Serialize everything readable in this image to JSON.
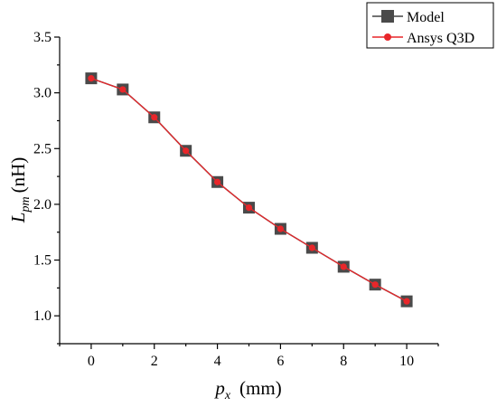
{
  "chart_data": {
    "type": "line",
    "x": [
      0,
      1,
      2,
      3,
      4,
      5,
      6,
      7,
      8,
      9,
      10
    ],
    "series": [
      {
        "name": "Model",
        "values": [
          3.13,
          3.03,
          2.78,
          2.48,
          2.2,
          1.97,
          1.78,
          1.61,
          1.44,
          1.28,
          1.13
        ],
        "color": "#4a4a4a",
        "marker": "square"
      },
      {
        "name": "Ansys Q3D",
        "values": [
          3.13,
          3.03,
          2.78,
          2.48,
          2.2,
          1.97,
          1.78,
          1.61,
          1.44,
          1.28,
          1.13
        ],
        "color": "#e8262a",
        "marker": "circle"
      }
    ],
    "xlabel": {
      "main": "p",
      "sub": "x",
      "unit": "(mm)"
    },
    "ylabel": {
      "main": "L",
      "sub": "pm",
      "unit": "(nH)"
    },
    "xlim": [
      -1,
      11
    ],
    "ylim": [
      0.75,
      3.5
    ],
    "xticks": [
      0,
      2,
      4,
      6,
      8,
      10
    ],
    "xtick_labels": [
      "0",
      "2",
      "4",
      "6",
      "8",
      "10"
    ],
    "yticks": [
      1.0,
      1.5,
      2.0,
      2.5,
      3.0,
      3.5
    ],
    "ytick_labels": [
      "1.0",
      "1.5",
      "2.0",
      "2.5",
      "3.0",
      "3.5"
    ],
    "legend_position": "top-right",
    "grid": false
  }
}
